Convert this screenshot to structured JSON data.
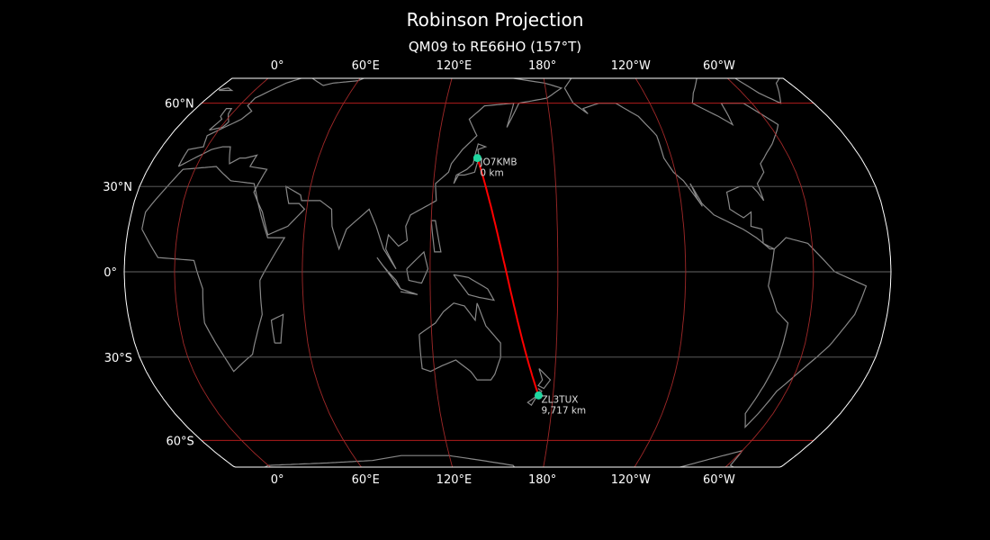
{
  "title": "Robinson Projection",
  "subtitle": "QM09 to RE66HO (157°T)",
  "projection": "robinson",
  "central_longitude": 156.4,
  "colors": {
    "background": "#000000",
    "coastline": "#888888",
    "meridian": "#a02828",
    "parallel_major": "#cc2020",
    "parallel_minor": "#666666",
    "path": "#ff0000",
    "marker": "#1fd6a0",
    "boundary": "#ffffff"
  },
  "longitude_ticks": [
    {
      "lon": 0,
      "label": "0°"
    },
    {
      "lon": 60,
      "label": "60°E"
    },
    {
      "lon": 120,
      "label": "120°E"
    },
    {
      "lon": 180,
      "label": "180°"
    },
    {
      "lon": -120,
      "label": "120°W"
    },
    {
      "lon": -60,
      "label": "60°W"
    }
  ],
  "latitude_ticks": [
    {
      "lat": 60,
      "label": "60°N"
    },
    {
      "lat": 30,
      "label": "30°N"
    },
    {
      "lat": 0,
      "label": "0°"
    },
    {
      "lat": -30,
      "label": "30°S"
    },
    {
      "lat": -60,
      "label": "60°S"
    }
  ],
  "points": [
    {
      "call": "JO7KMB",
      "distance": "0 km",
      "lat": 40.0,
      "lon": 141.0
    },
    {
      "call": "ZL3TUX",
      "distance": "9,717 km",
      "lat": -43.5,
      "lon": 172.5
    }
  ]
}
